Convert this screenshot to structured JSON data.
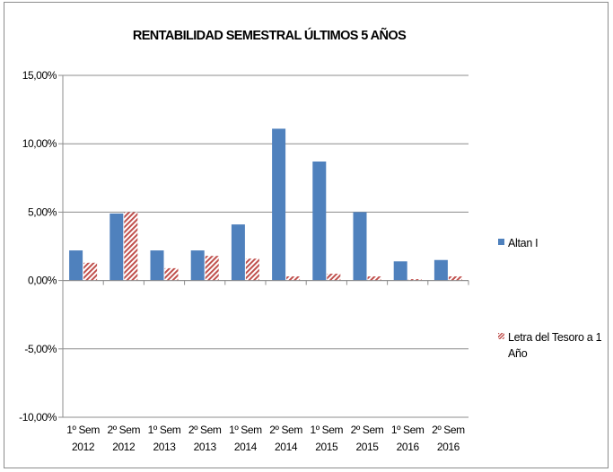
{
  "chart_data": {
    "type": "bar",
    "title": "RENTABILIDAD SEMESTRAL ÚLTIMOS 5 AÑOS",
    "xlabel": "",
    "ylabel": "",
    "categories": [
      [
        "1º Sem",
        "2012"
      ],
      [
        "2º Sem",
        "2012"
      ],
      [
        "1º Sem",
        "2013"
      ],
      [
        "2º Sem",
        "2013"
      ],
      [
        "1º Sem",
        "2014"
      ],
      [
        "2º Sem",
        "2014"
      ],
      [
        "1º Sem",
        "2015"
      ],
      [
        "2º Sem",
        "2015"
      ],
      [
        "1º Sem",
        "2016"
      ],
      [
        "2º Sem",
        "2016"
      ]
    ],
    "series": [
      {
        "name": "Altan I",
        "color": "#4f81bd",
        "fill": "solid",
        "values": [
          2.2,
          4.9,
          2.2,
          2.2,
          4.1,
          11.1,
          8.7,
          5.0,
          1.4,
          1.5
        ]
      },
      {
        "name": "Letra del Tesoro a 1 Año",
        "color": "#c0504d",
        "fill": "diagonal-hatch",
        "values": [
          1.3,
          5.0,
          0.9,
          1.8,
          1.6,
          0.3,
          0.5,
          0.3,
          0.1,
          0.3
        ]
      }
    ],
    "yticks": [
      "15,00%",
      "10,00%",
      "5,00%",
      "0,00%",
      "-5,00%",
      "-10,00%"
    ],
    "ytick_values": [
      15,
      10,
      5,
      0,
      -5,
      -10
    ],
    "ylim": [
      -10,
      15
    ],
    "grid": true,
    "legend": "right"
  }
}
